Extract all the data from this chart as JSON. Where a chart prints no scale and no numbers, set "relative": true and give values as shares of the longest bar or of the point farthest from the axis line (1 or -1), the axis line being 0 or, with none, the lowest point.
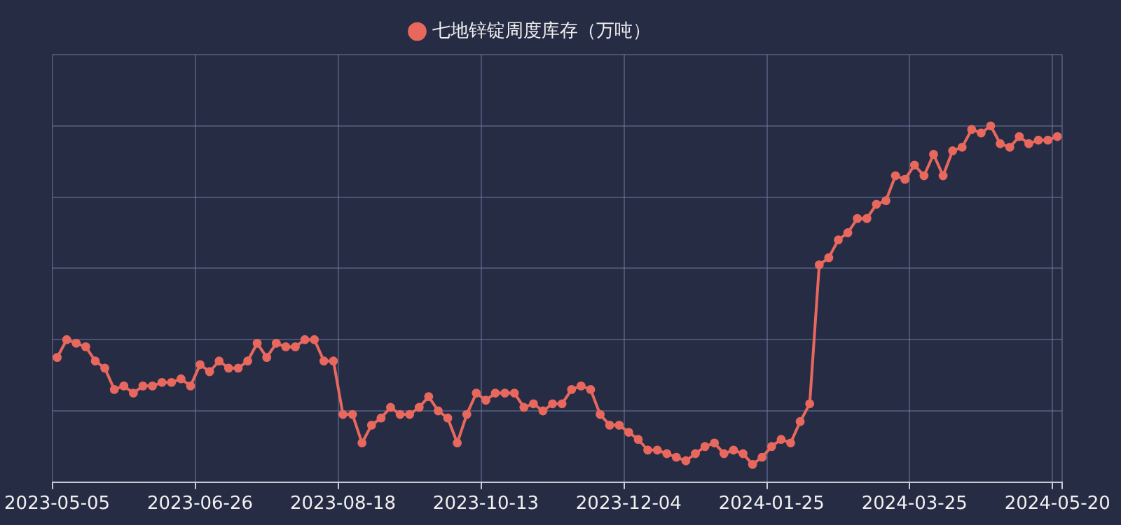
{
  "chart_data": {
    "type": "line",
    "relative": true,
    "grid": true,
    "legend": "top",
    "marker": "circle",
    "line_style": "solid",
    "categories": [
      "2023-05-05",
      null,
      null,
      null,
      null,
      null,
      null,
      null,
      null,
      null,
      null,
      null,
      null,
      null,
      null,
      "2023-06-26",
      null,
      null,
      null,
      null,
      null,
      null,
      null,
      null,
      null,
      null,
      null,
      null,
      null,
      null,
      "2023-08-18",
      null,
      null,
      null,
      null,
      null,
      null,
      null,
      null,
      null,
      null,
      null,
      null,
      null,
      null,
      "2023-10-13",
      null,
      null,
      null,
      null,
      null,
      null,
      null,
      null,
      null,
      null,
      null,
      null,
      null,
      null,
      "2023-12-04",
      null,
      null,
      null,
      null,
      null,
      null,
      null,
      null,
      null,
      null,
      null,
      null,
      null,
      null,
      "2024-01-25",
      null,
      null,
      null,
      null,
      null,
      null,
      null,
      null,
      null,
      null,
      null,
      null,
      null,
      null,
      "2024-03-25",
      null,
      null,
      null,
      null,
      null,
      null,
      null,
      null,
      null,
      null,
      null,
      null,
      null,
      null,
      "2024-05-20"
    ],
    "series": [
      {
        "name": "七地锌锭周度库存（万吨）",
        "color": "#e8685e",
        "values": [
          0.35,
          0.4,
          0.39,
          0.38,
          0.34,
          0.32,
          0.26,
          0.27,
          0.25,
          0.27,
          0.27,
          0.28,
          0.28,
          0.29,
          0.27,
          0.33,
          0.31,
          0.34,
          0.32,
          0.32,
          0.34,
          0.39,
          0.35,
          0.39,
          0.38,
          0.38,
          0.4,
          0.4,
          0.34,
          0.34,
          0.19,
          0.19,
          0.11,
          0.16,
          0.18,
          0.21,
          0.19,
          0.19,
          0.21,
          0.24,
          0.2,
          0.18,
          0.11,
          0.19,
          0.25,
          0.23,
          0.25,
          0.25,
          0.25,
          0.21,
          0.22,
          0.2,
          0.22,
          0.22,
          0.26,
          0.27,
          0.26,
          0.19,
          0.16,
          0.16,
          0.14,
          0.12,
          0.09,
          0.09,
          0.08,
          0.07,
          0.06,
          0.08,
          0.1,
          0.11,
          0.08,
          0.09,
          0.08,
          0.05,
          0.07,
          0.1,
          0.12,
          0.11,
          0.17,
          0.22,
          0.61,
          0.63,
          0.68,
          0.7,
          0.74,
          0.74,
          0.78,
          0.79,
          0.86,
          0.85,
          0.89,
          0.86,
          0.92,
          0.86,
          0.93,
          0.94,
          0.99,
          0.98,
          1,
          0.95,
          0.94,
          0.97,
          0.95,
          0.96,
          0.96,
          0.97
        ]
      }
    ]
  }
}
